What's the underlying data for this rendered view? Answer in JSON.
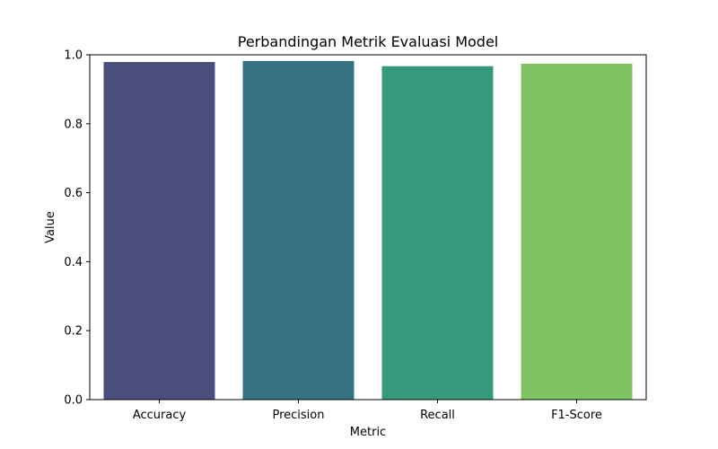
{
  "chart_data": {
    "type": "bar",
    "title": "Perbandingan Metrik Evaluasi Model",
    "xlabel": "Metric",
    "ylabel": "Value",
    "categories": [
      "Accuracy",
      "Precision",
      "Recall",
      "F1-Score"
    ],
    "values": [
      0.979,
      0.982,
      0.967,
      0.974
    ],
    "colors": [
      "#4a4e7d",
      "#357281",
      "#359a7c",
      "#80c363"
    ],
    "ylim": [
      0,
      1.0
    ],
    "yticks": [
      "0.0",
      "0.2",
      "0.4",
      "0.6",
      "0.8",
      "1.0"
    ],
    "grid": false,
    "legend": "none"
  }
}
